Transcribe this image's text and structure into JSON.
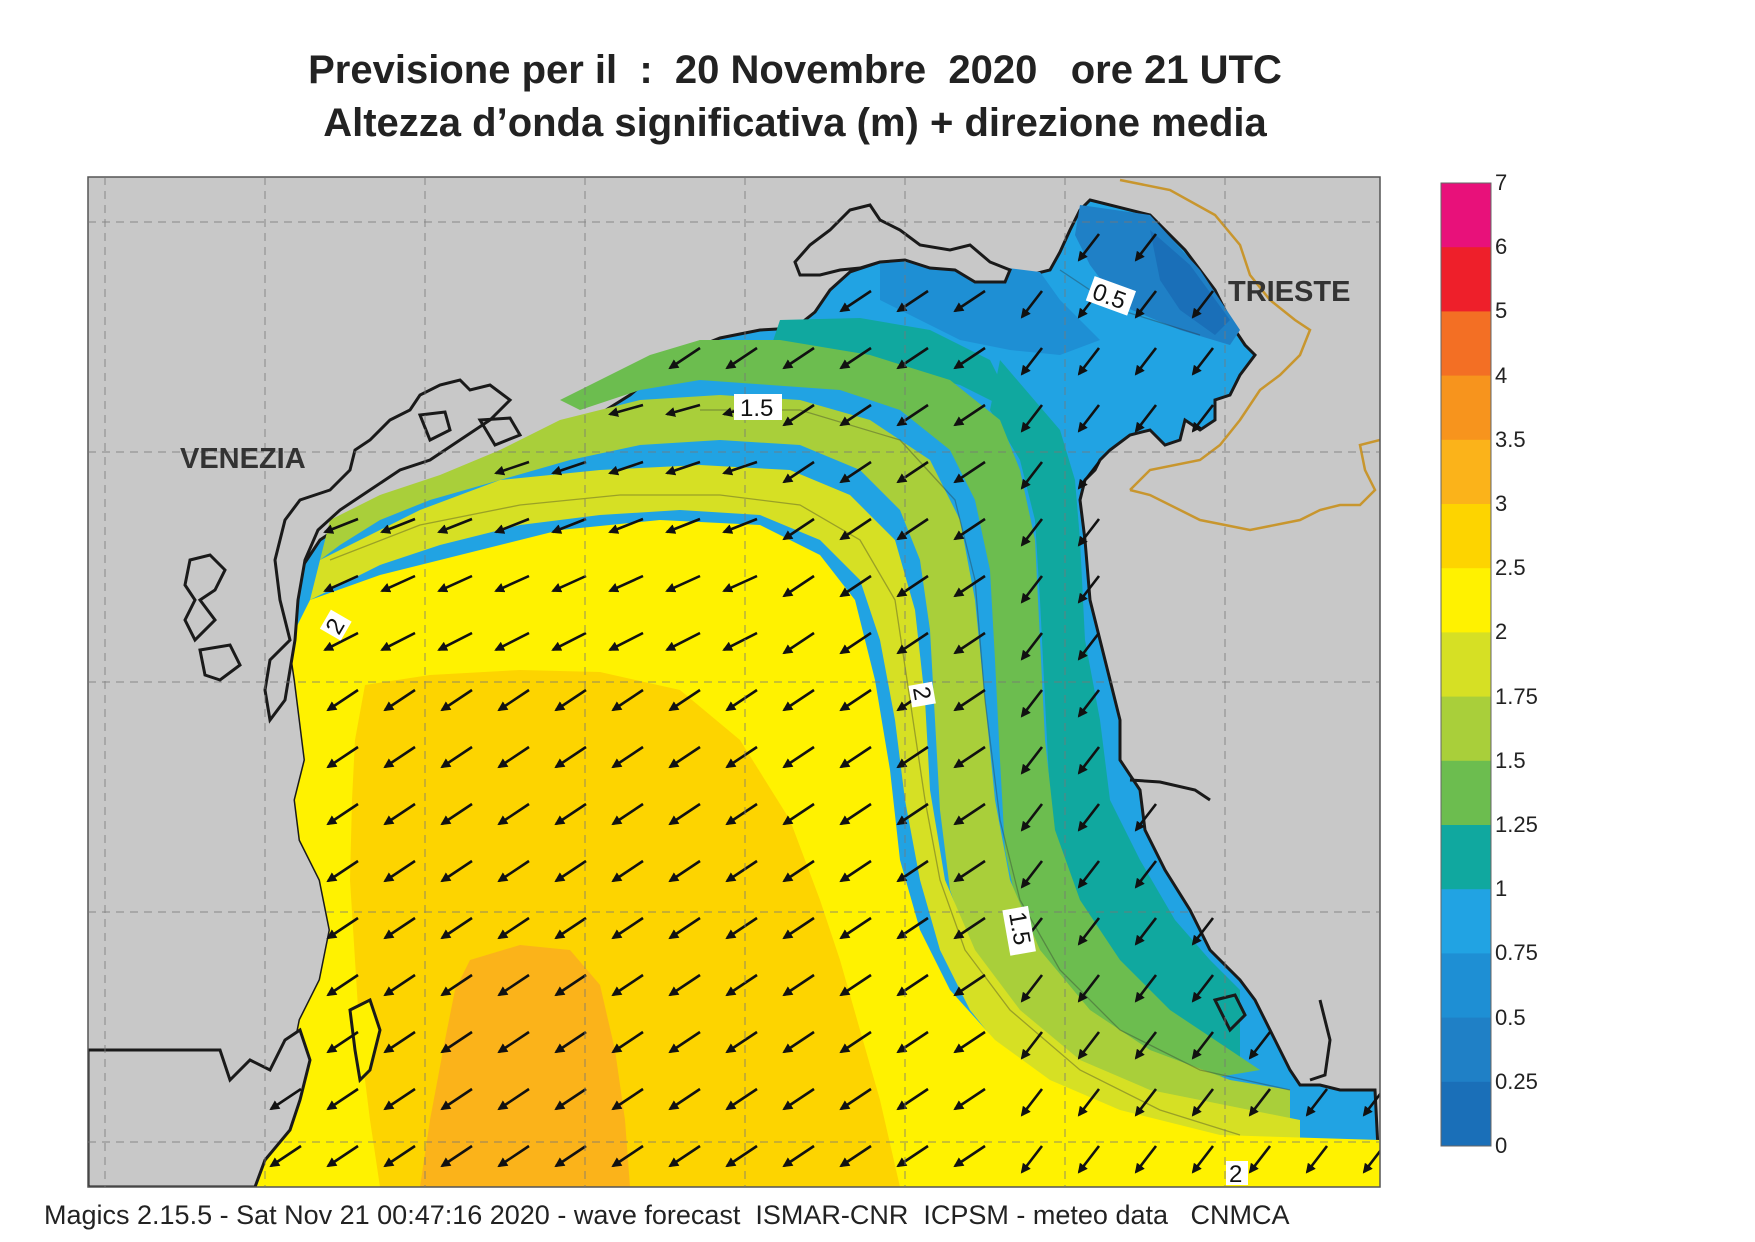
{
  "title": {
    "line1": "Previsione per il  :  20 Novembre  2020   ore 21 UTC",
    "line2": "Altezza d’onda significativa (m) + direzione media"
  },
  "map": {
    "cities": [
      {
        "id": "venezia",
        "name": "VENEZIA"
      },
      {
        "id": "trieste",
        "name": "TRIESTE"
      }
    ],
    "contour_labels": [
      "0.5",
      "1.5",
      "2",
      "2",
      "1.5",
      "2"
    ],
    "colors": {
      "land": "#c8c8c8",
      "h_0_025": "#1a6fb8",
      "h_025_05": "#1f80c6",
      "h_05_075": "#1e8fd4",
      "h_075_1": "#21a3e3",
      "h_1_125": "#10a89f",
      "h_125_15": "#6cbd4f",
      "h_15_175": "#a9cf3a",
      "h_175_2": "#d6e024",
      "h_2_25": "#fff200",
      "h_25_3": "#fdd400",
      "h_3_35": "#fbb31a"
    },
    "wave_direction": "towards south-west"
  },
  "colorbar": {
    "ticks": [
      "7",
      "6",
      "5",
      "4",
      "3.5",
      "3",
      "2.5",
      "2",
      "1.75",
      "1.5",
      "1.25",
      "1",
      "0.75",
      "0.5",
      "0.25",
      "0"
    ],
    "colors": [
      "#e8117a",
      "#ee1f2a",
      "#f36f24",
      "#f7941d",
      "#fbb31a",
      "#fdd400",
      "#fff200",
      "#d6e024",
      "#a9cf3a",
      "#6cbd4f",
      "#10a89f",
      "#21a3e3",
      "#1e8fd4",
      "#1f80c6",
      "#1a6fb8"
    ]
  },
  "footer": "Magics 2.15.5 - Sat Nov 21 00:47:16 2020 - wave forecast  ISMAR-CNR  ICPSM - meteo data   CNMCA"
}
